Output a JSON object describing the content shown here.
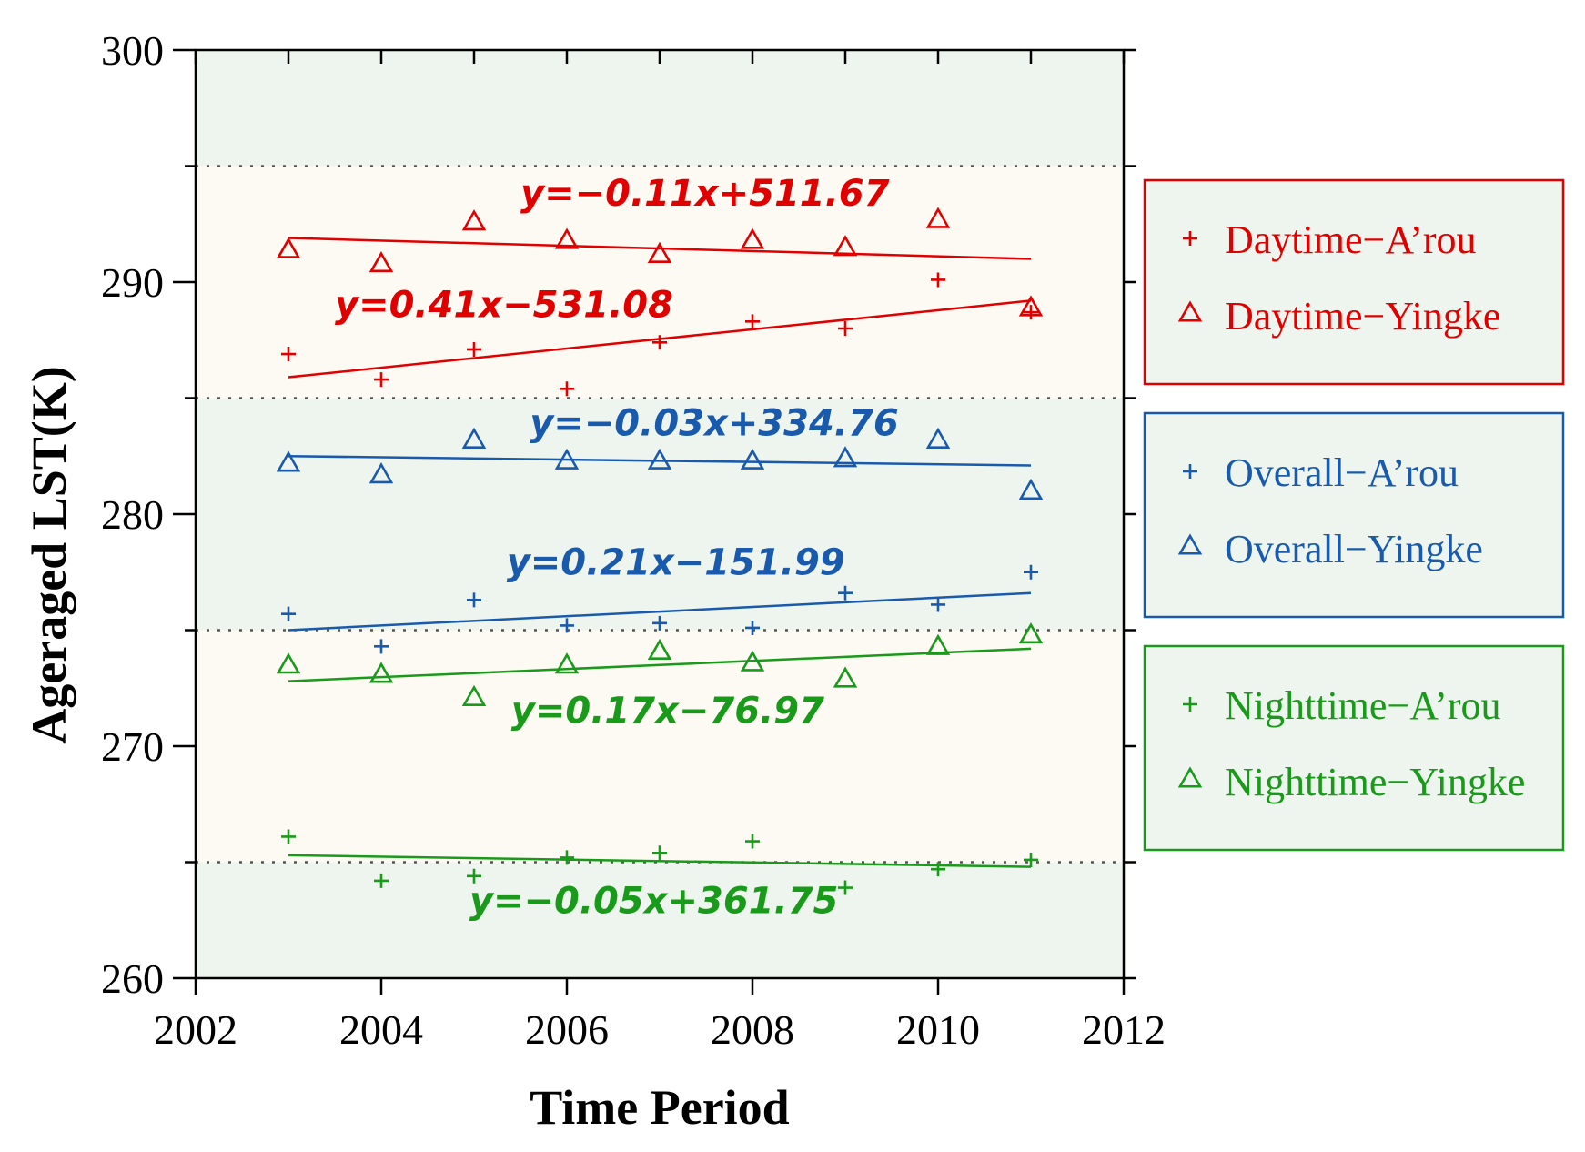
{
  "chart_data": {
    "type": "scatter",
    "title": "",
    "xlabel": "Time Period",
    "ylabel": "Ageraged LST(K)",
    "xlim": [
      2002,
      2012
    ],
    "ylim": [
      260,
      300
    ],
    "xticks": [
      "2002",
      "2004",
      "2006",
      "2008",
      "2010",
      "2012"
    ],
    "yticks": [
      "260",
      "270",
      "280",
      "290",
      "300"
    ],
    "x": [
      2003,
      2004,
      2005,
      2006,
      2007,
      2008,
      2009,
      2010,
      2011
    ],
    "bands": [
      {
        "from": 295,
        "to": 300,
        "fill": "#eef5ee"
      },
      {
        "from": 285,
        "to": 295,
        "fill": "#fdf9f3"
      },
      {
        "from": 275,
        "to": 285,
        "fill": "#eef5ee"
      },
      {
        "from": 265,
        "to": 275,
        "fill": "#fdf9f3"
      },
      {
        "from": 260,
        "to": 265,
        "fill": "#eef5ee"
      }
    ],
    "gridlines": [
      265,
      275,
      285,
      295
    ],
    "series": [
      {
        "name": "Daytime−A’rou",
        "marker": "plus",
        "color": "#e00000",
        "values": [
          286.9,
          285.8,
          287.1,
          285.4,
          287.4,
          288.3,
          288.0,
          290.1,
          288.7
        ],
        "trend": {
          "label": "y=0.41x−531.08",
          "y0": 285.9,
          "y1": 289.2,
          "labelX": 2003.5,
          "labelY": 288.5
        }
      },
      {
        "name": "Daytime−Yingke",
        "marker": "triangle",
        "color": "#e00000",
        "values": [
          291.4,
          290.8,
          292.6,
          291.8,
          291.2,
          291.8,
          291.5,
          292.7,
          288.9
        ],
        "trend": {
          "label": "y=−0.11x+511.67",
          "y0": 291.9,
          "y1": 291.0,
          "labelX": 2005.5,
          "labelY": 293.3
        }
      },
      {
        "name": "Overall−A’rou",
        "marker": "plus",
        "color": "#1a5aad",
        "values": [
          275.7,
          274.3,
          276.3,
          275.2,
          275.3,
          275.1,
          276.6,
          276.1,
          277.5
        ],
        "trend": {
          "label": "y=0.21x−151.99",
          "y0": 275.0,
          "y1": 276.6,
          "labelX": 2005.35,
          "labelY": 277.4
        }
      },
      {
        "name": "Overall−Yingke",
        "marker": "triangle",
        "color": "#1a5aad",
        "values": [
          282.2,
          281.7,
          283.2,
          282.3,
          282.3,
          282.3,
          282.4,
          283.2,
          281.0
        ],
        "trend": {
          "label": "y=−0.03x+334.76",
          "y0": 282.5,
          "y1": 282.1,
          "labelX": 2005.6,
          "labelY": 283.4
        }
      },
      {
        "name": "Nighttime−A’rou",
        "marker": "plus",
        "color": "#1a9a1a",
        "values": [
          266.1,
          264.2,
          264.4,
          265.2,
          265.4,
          265.9,
          263.9,
          264.7,
          265.1
        ],
        "trend": {
          "label": "y=−0.05x+361.75",
          "y0": 265.3,
          "y1": 264.8,
          "labelX": 2004.95,
          "labelY": 262.8
        }
      },
      {
        "name": "Nighttime−Yingke",
        "marker": "triangle",
        "color": "#1a9a1a",
        "values": [
          273.5,
          273.1,
          272.1,
          273.5,
          274.1,
          273.6,
          272.9,
          274.3,
          274.8
        ],
        "trend": {
          "label": "y=0.17x−76.97",
          "y0": 272.8,
          "y1": 274.2,
          "labelX": 2005.4,
          "labelY": 271.0
        }
      }
    ],
    "legend": {
      "placement": "right",
      "groups": [
        {
          "color": "#e00000",
          "fill": "#eef5ee",
          "entries": [
            0,
            1
          ]
        },
        {
          "color": "#1a5aad",
          "fill": "#eef5ee",
          "entries": [
            2,
            3
          ]
        },
        {
          "color": "#1a9a1a",
          "fill": "#eef5ee",
          "entries": [
            4,
            5
          ]
        }
      ]
    }
  }
}
